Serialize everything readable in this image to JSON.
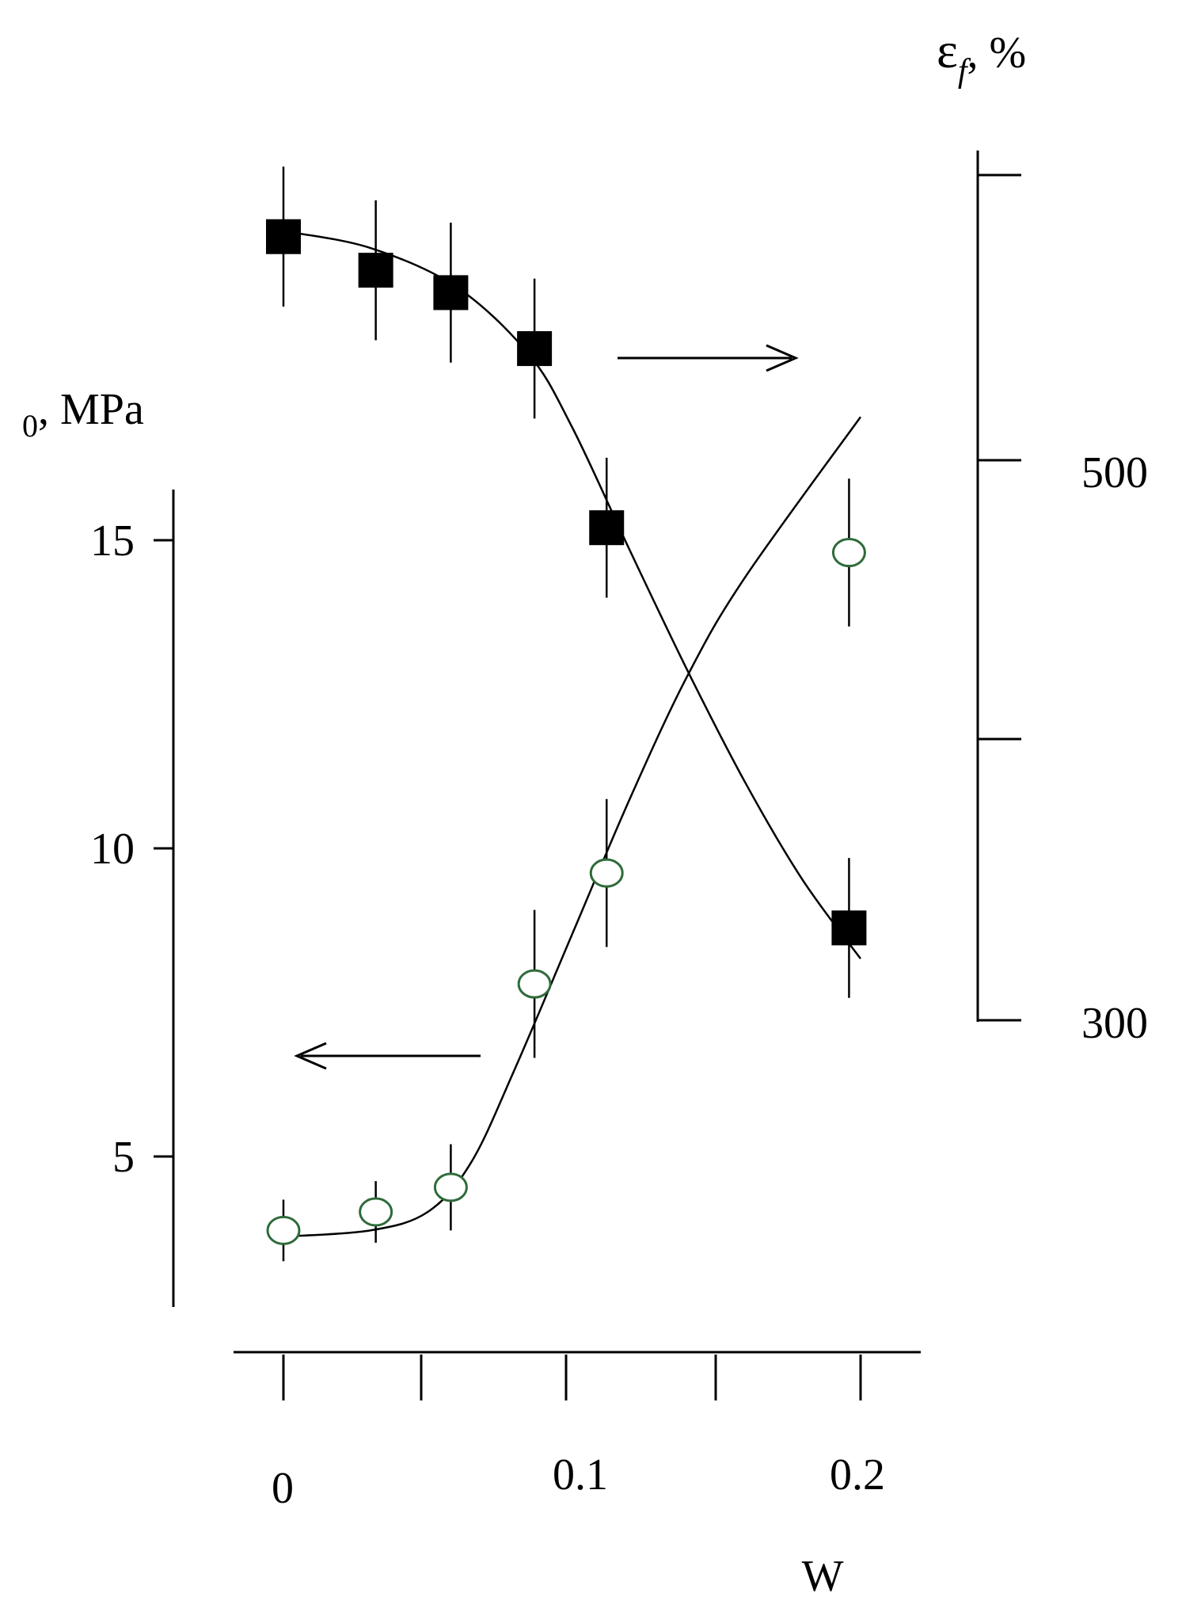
{
  "chart_data": {
    "type": "scatter",
    "xlabel": "W",
    "x_ticks": [
      "0",
      "0.1",
      "0.2"
    ],
    "xlim": [
      0,
      0.2
    ],
    "left_axis": {
      "label": "0, MPa",
      "ticks": [
        "5",
        "10",
        "15"
      ],
      "ylim": [
        3,
        16
      ]
    },
    "right_axis": {
      "label_main": "ε",
      "label_sub": "f",
      "label_unit": ", %",
      "ticks": [
        "300",
        "500"
      ],
      "ylim": [
        300,
        600
      ]
    },
    "series": [
      {
        "marker": "filled-square",
        "axis": "right",
        "color": "#000000",
        "points": [
          {
            "x": 0.0,
            "y": 580,
            "err": 25
          },
          {
            "x": 0.032,
            "y": 568,
            "err": 25
          },
          {
            "x": 0.058,
            "y": 560,
            "err": 25
          },
          {
            "x": 0.087,
            "y": 540,
            "err": 25
          },
          {
            "x": 0.112,
            "y": 476,
            "err": 25
          },
          {
            "x": 0.196,
            "y": 333,
            "err": 25
          }
        ],
        "fit": [
          {
            "x": 0.0,
            "y": 582
          },
          {
            "x": 0.03,
            "y": 576
          },
          {
            "x": 0.06,
            "y": 562
          },
          {
            "x": 0.085,
            "y": 538
          },
          {
            "x": 0.1,
            "y": 512
          },
          {
            "x": 0.12,
            "y": 468
          },
          {
            "x": 0.14,
            "y": 425
          },
          {
            "x": 0.16,
            "y": 385
          },
          {
            "x": 0.18,
            "y": 350
          },
          {
            "x": 0.2,
            "y": 322
          }
        ]
      },
      {
        "marker": "open-circle",
        "axis": "left",
        "color": "#2e6b3a",
        "points": [
          {
            "x": 0.0,
            "y": 3.8,
            "err": 0.5
          },
          {
            "x": 0.032,
            "y": 4.1,
            "err": 0.5
          },
          {
            "x": 0.058,
            "y": 4.5,
            "err": 0.7
          },
          {
            "x": 0.087,
            "y": 7.8,
            "err": 1.2
          },
          {
            "x": 0.112,
            "y": 9.6,
            "err": 1.2
          },
          {
            "x": 0.196,
            "y": 14.8,
            "err": 1.2
          }
        ],
        "fit": [
          {
            "x": 0.0,
            "y": 3.7
          },
          {
            "x": 0.03,
            "y": 3.8
          },
          {
            "x": 0.05,
            "y": 4.1
          },
          {
            "x": 0.065,
            "y": 4.9
          },
          {
            "x": 0.08,
            "y": 6.4
          },
          {
            "x": 0.1,
            "y": 8.6
          },
          {
            "x": 0.12,
            "y": 10.8
          },
          {
            "x": 0.14,
            "y": 12.8
          },
          {
            "x": 0.16,
            "y": 14.4
          },
          {
            "x": 0.2,
            "y": 17.0
          }
        ]
      }
    ],
    "annotations": [
      {
        "type": "arrow",
        "direction": "right",
        "points_to": "right_axis"
      },
      {
        "type": "arrow",
        "direction": "left",
        "points_to": "left_axis"
      }
    ]
  }
}
